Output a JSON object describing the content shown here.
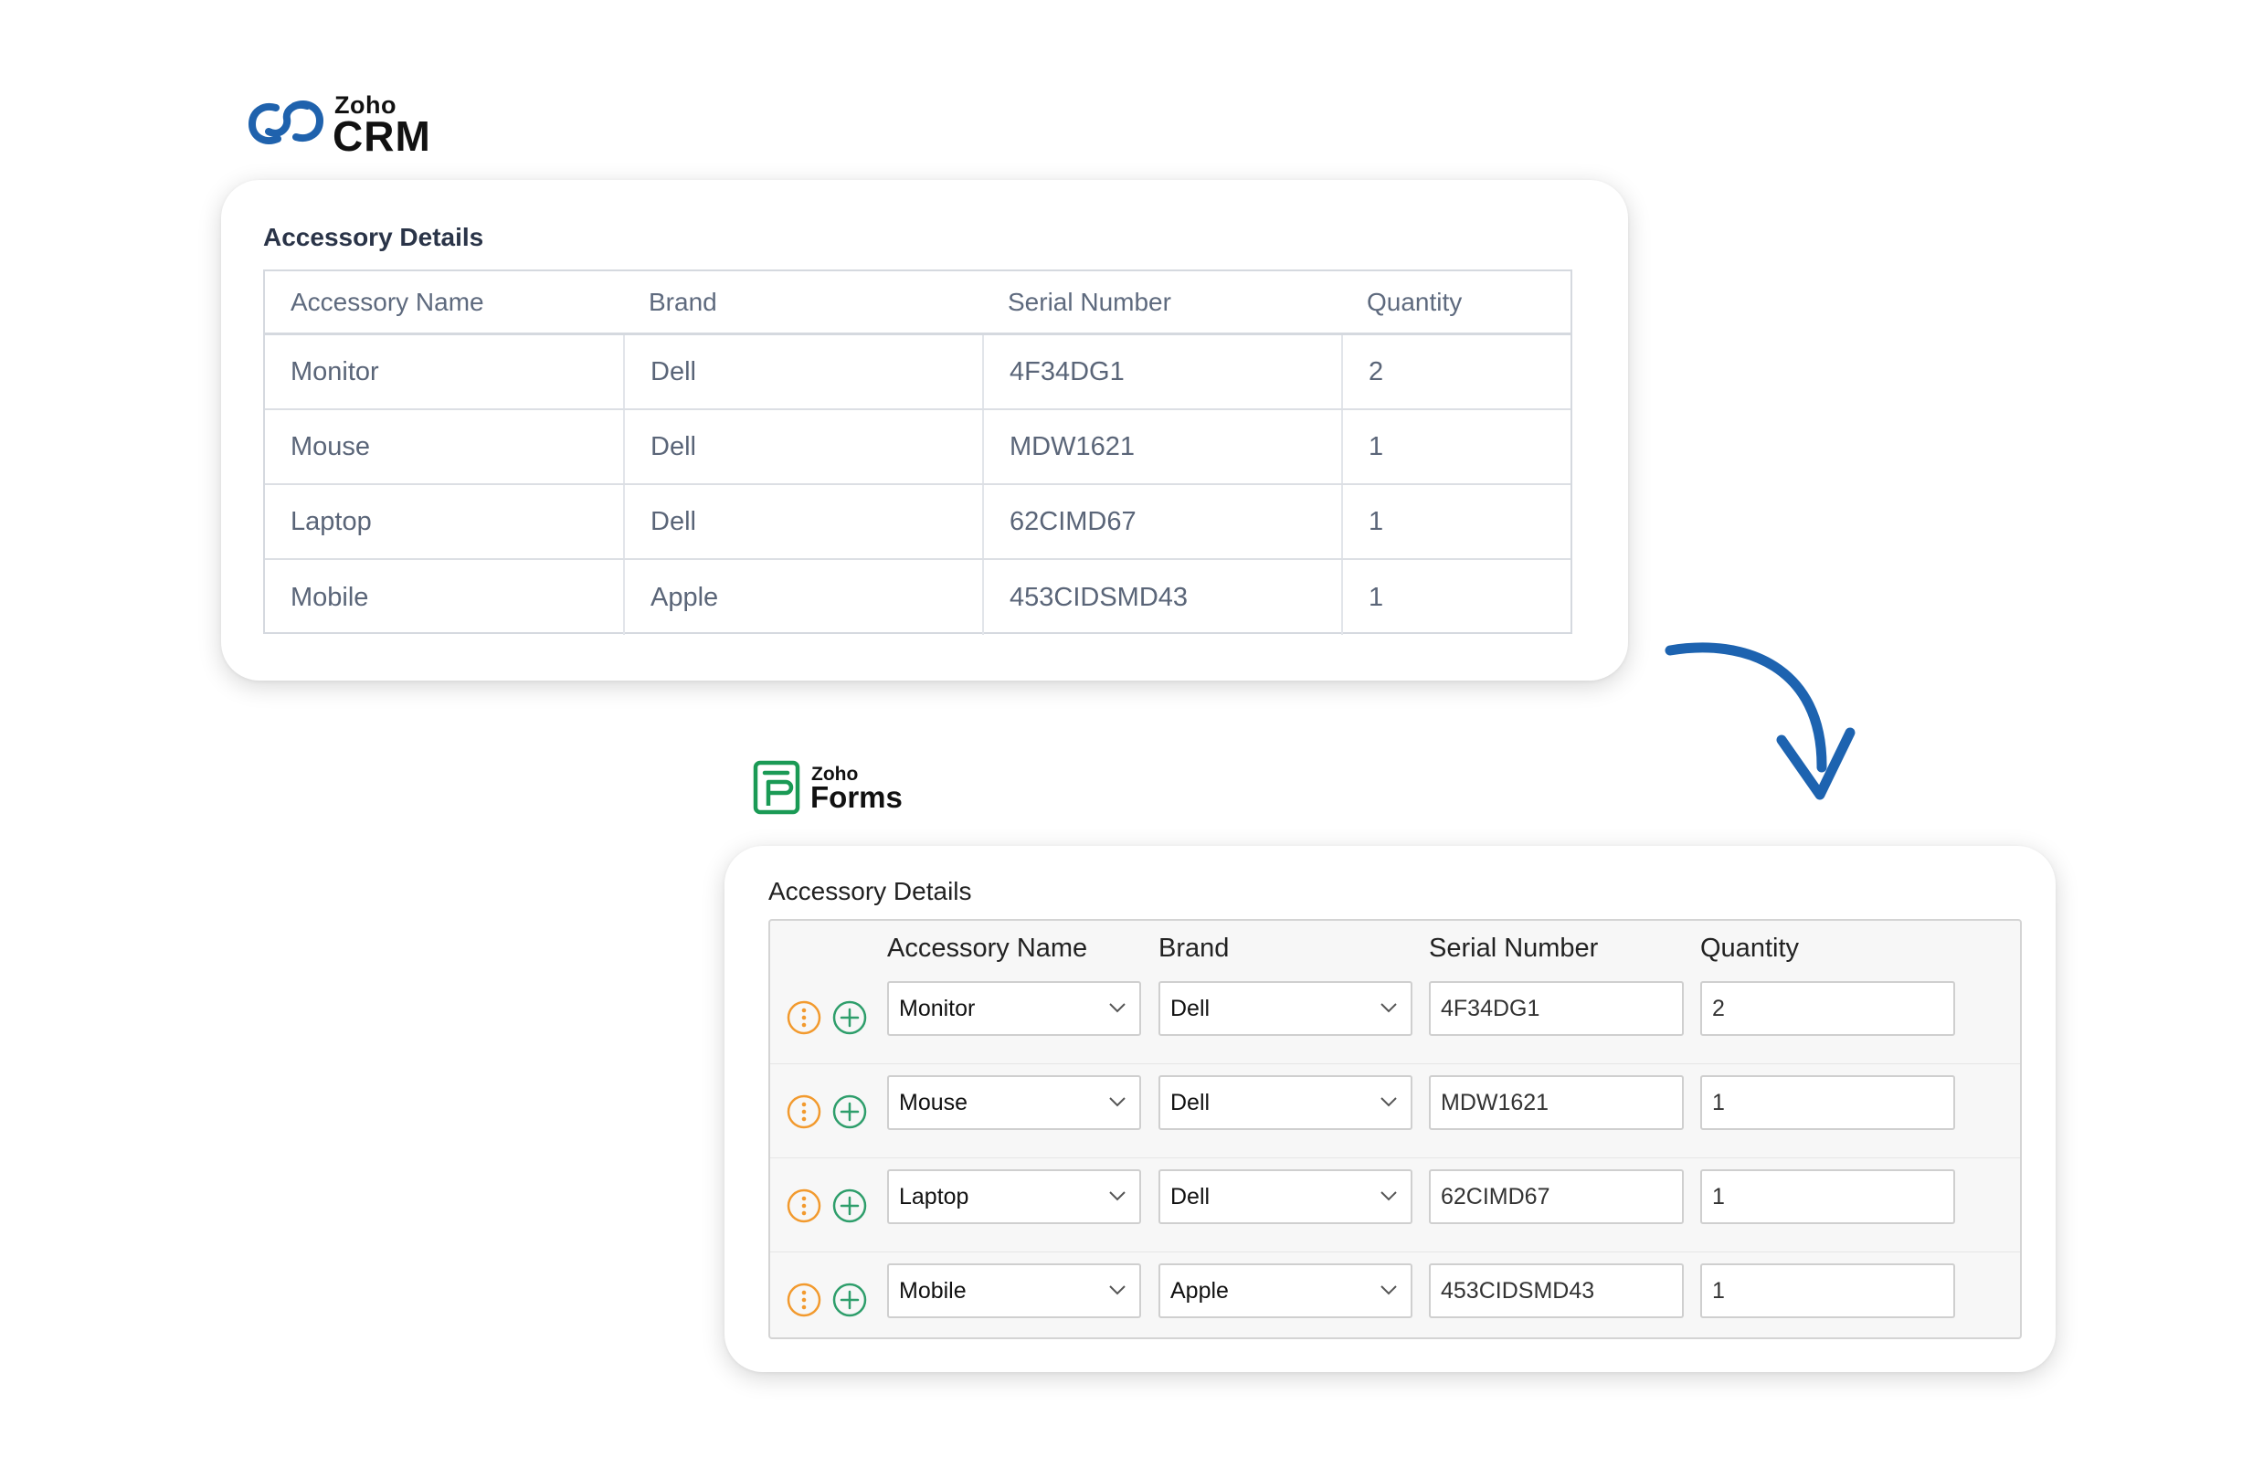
{
  "crm": {
    "logo": {
      "brand": "Zoho",
      "product": "CRM"
    },
    "title": "Accessory Details",
    "columns": [
      "Accessory Name",
      "Brand",
      "Serial Number",
      "Quantity"
    ],
    "rows": [
      {
        "name": "Monitor",
        "brand": "Dell",
        "serial": "4F34DG1",
        "quantity": "2"
      },
      {
        "name": "Mouse",
        "brand": "Dell",
        "serial": "MDW1621",
        "quantity": "1"
      },
      {
        "name": "Laptop",
        "brand": "Dell",
        "serial": "62CIMD67",
        "quantity": "1"
      },
      {
        "name": "Mobile",
        "brand": "Apple",
        "serial": "453CIDSMD43",
        "quantity": "1"
      }
    ]
  },
  "forms": {
    "logo": {
      "brand": "Zoho",
      "product": "Forms"
    },
    "title": "Accessory Details",
    "columns": [
      "Accessory Name",
      "Brand",
      "Serial Number",
      "Quantity"
    ],
    "rows": [
      {
        "name": "Monitor",
        "brand": "Dell",
        "serial": "4F34DG1",
        "quantity": "2"
      },
      {
        "name": "Mouse",
        "brand": "Dell",
        "serial": "MDW1621",
        "quantity": "1"
      },
      {
        "name": "Laptop",
        "brand": "Dell",
        "serial": "62CIMD67",
        "quantity": "1"
      },
      {
        "name": "Mobile",
        "brand": "Apple",
        "serial": "453CIDSMD43",
        "quantity": "1"
      }
    ]
  },
  "icons": {
    "crm_logo": "zoho-crm-logo-icon",
    "forms_logo": "zoho-forms-logo-icon",
    "flow_arrow": "curved-arrow-down-icon",
    "row_more": "more-vertical-icon",
    "row_add": "plus-circle-icon",
    "dropdown": "chevron-down-icon"
  },
  "colors": {
    "crm_blue": "#1f62ad",
    "arrow_blue": "#1d63b0",
    "forms_green": "#1a9a55",
    "more_orange": "#f29a2e",
    "add_green": "#2e9e6b"
  }
}
